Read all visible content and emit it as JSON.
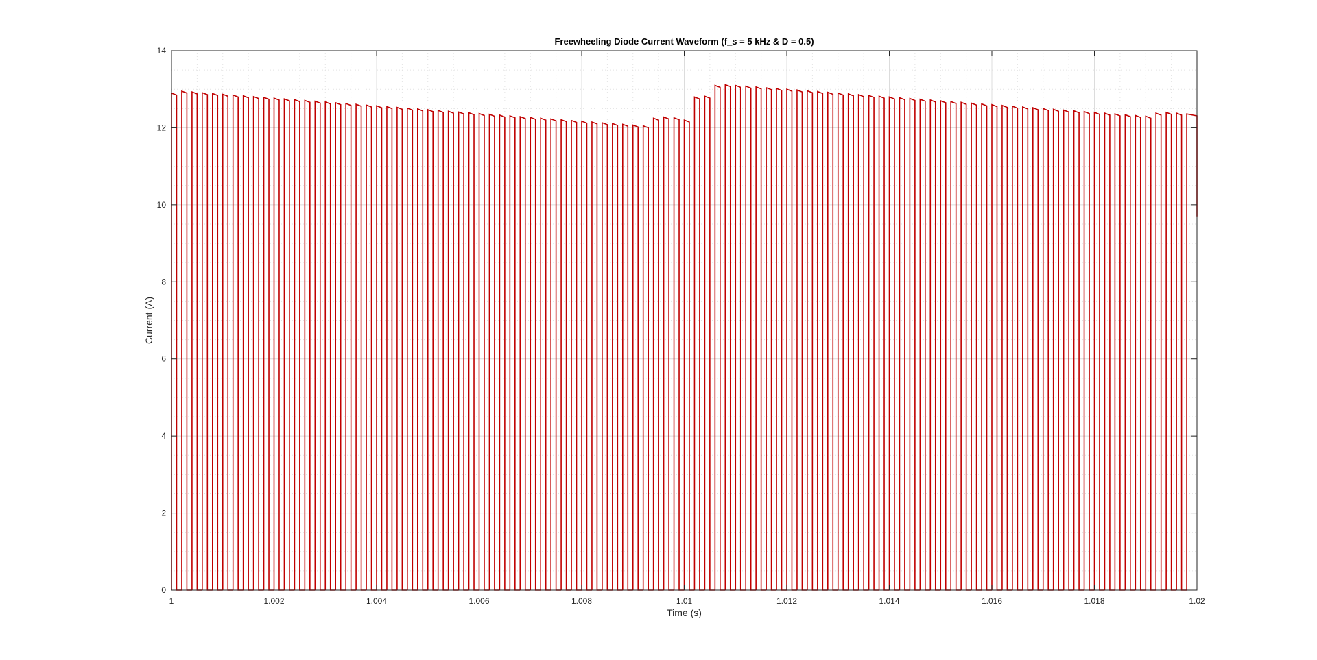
{
  "chart_data": {
    "type": "line",
    "title": "Freewheeling Diode Current Waveform (f_s = 5 kHz & D = 0.5)",
    "xlabel": "Time (s)",
    "ylabel": "Current (A)",
    "xlim": [
      1,
      1.02
    ],
    "ylim": [
      0,
      14
    ],
    "xticks": [
      1,
      1.002,
      1.004,
      1.006,
      1.008,
      1.01,
      1.012,
      1.014,
      1.016,
      1.018,
      1.02
    ],
    "xtick_labels": [
      "1",
      "1.002",
      "1.004",
      "1.006",
      "1.008",
      "1.01",
      "1.012",
      "1.014",
      "1.016",
      "1.018",
      "1.02"
    ],
    "yticks": [
      0,
      2,
      4,
      6,
      8,
      10,
      12,
      14
    ],
    "ytick_labels": [
      "0",
      "2",
      "4",
      "6",
      "8",
      "10",
      "12",
      "14"
    ],
    "grid": true,
    "minor_grid": true,
    "legend": "none",
    "series": [
      {
        "color": "#c00000",
        "switching_frequency_hz": 5000,
        "duty_cycle": 0.5,
        "pulse_start_times": [
          1.0,
          1.0002,
          1.0004,
          1.0006,
          1.0008,
          1.001,
          1.0012,
          1.0014,
          1.0016,
          1.0018,
          1.002,
          1.0022,
          1.0024,
          1.0026,
          1.0028,
          1.003,
          1.0032,
          1.0034,
          1.0036,
          1.0038,
          1.004,
          1.0042,
          1.0044,
          1.0046,
          1.0048,
          1.005,
          1.0052,
          1.0054,
          1.0056,
          1.0058,
          1.006,
          1.0062,
          1.0064,
          1.0066,
          1.0068,
          1.007,
          1.0072,
          1.0074,
          1.0076,
          1.0078,
          1.008,
          1.0082,
          1.0084,
          1.0086,
          1.0088,
          1.009,
          1.0092,
          1.0094,
          1.0096,
          1.0098,
          1.01,
          1.0102,
          1.0104,
          1.0106,
          1.0108,
          1.011,
          1.0112,
          1.0114,
          1.0116,
          1.0118,
          1.012,
          1.0122,
          1.0124,
          1.0126,
          1.0128,
          1.013,
          1.0132,
          1.0134,
          1.0136,
          1.0138,
          1.014,
          1.0142,
          1.0144,
          1.0146,
          1.0148,
          1.015,
          1.0152,
          1.0154,
          1.0156,
          1.0158,
          1.016,
          1.0162,
          1.0164,
          1.0166,
          1.0168,
          1.017,
          1.0172,
          1.0174,
          1.0176,
          1.0178,
          1.018,
          1.0182,
          1.0184,
          1.0186,
          1.0188,
          1.019,
          1.0192,
          1.0194,
          1.0196,
          1.0198
        ],
        "pulse_peak_values": [
          12.9,
          12.95,
          12.93,
          12.91,
          12.89,
          12.87,
          12.85,
          12.83,
          12.81,
          12.79,
          12.77,
          12.75,
          12.73,
          12.71,
          12.69,
          12.67,
          12.65,
          12.63,
          12.61,
          12.59,
          12.57,
          12.55,
          12.53,
          12.51,
          12.49,
          12.47,
          12.45,
          12.43,
          12.41,
          12.39,
          12.37,
          12.35,
          12.33,
          12.31,
          12.29,
          12.27,
          12.25,
          12.23,
          12.21,
          12.19,
          12.17,
          12.15,
          12.13,
          12.11,
          12.09,
          12.07,
          12.05,
          12.25,
          12.28,
          12.26,
          12.2,
          12.8,
          12.82,
          13.1,
          13.12,
          13.1,
          13.08,
          13.06,
          13.04,
          13.02,
          13.0,
          12.98,
          12.96,
          12.94,
          12.92,
          12.9,
          12.88,
          12.86,
          12.84,
          12.82,
          12.8,
          12.78,
          12.76,
          12.74,
          12.72,
          12.7,
          12.68,
          12.66,
          12.64,
          12.62,
          12.6,
          12.58,
          12.56,
          12.54,
          12.52,
          12.5,
          12.48,
          12.46,
          12.44,
          12.42,
          12.4,
          12.38,
          12.36,
          12.34,
          12.32,
          12.3,
          12.38,
          12.4,
          12.38,
          12.36
        ],
        "pulse_droop": 0.05,
        "final_value": 9.7
      }
    ]
  }
}
